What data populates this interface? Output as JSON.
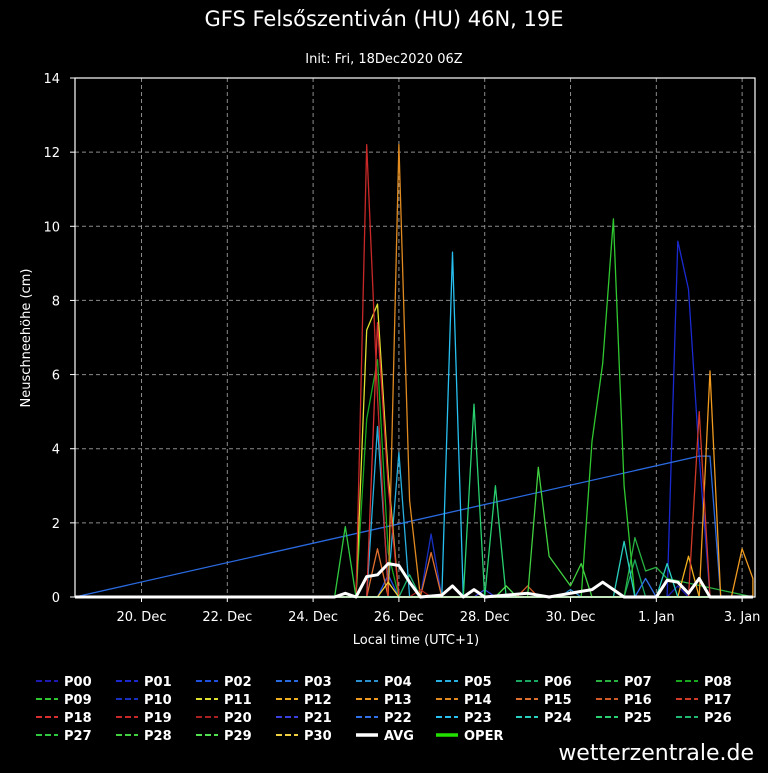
{
  "colors": {
    "background": "#000000",
    "text": "#ffffff",
    "grid": "#8c8c8c",
    "avg": "#ffffff",
    "oper": "#22e000"
  },
  "brand": "wetterzentrale.de",
  "chart_data": {
    "type": "line",
    "title": "GFS Felsőszentiván (HU) 46N, 19E",
    "subtitle": "Init: Fri, 18Dec2020 06Z",
    "xlabel": "Local time (UTC+1)",
    "ylabel": "Neuschneehöhe (cm)",
    "ylim": [
      0,
      14
    ],
    "yticks": [
      0,
      2,
      4,
      6,
      8,
      10,
      12,
      14
    ],
    "xlim": [
      18.45,
      34.3
    ],
    "xticks": [
      {
        "x": 20,
        "label": "20. Dec"
      },
      {
        "x": 22,
        "label": "22. Dec"
      },
      {
        "x": 24,
        "label": "24. Dec"
      },
      {
        "x": 26,
        "label": "26. Dec"
      },
      {
        "x": 28,
        "label": "28. Dec"
      },
      {
        "x": 30,
        "label": "30. Dec"
      },
      {
        "x": 32,
        "label": "1. Jan"
      },
      {
        "x": 34,
        "label": "3. Jan"
      }
    ],
    "grid": true,
    "series": [
      {
        "name": "P00",
        "color": "#1c1cb4",
        "points": [
          [
            32.25,
            0
          ],
          [
            32.5,
            0.3
          ],
          [
            32.75,
            0
          ]
        ]
      },
      {
        "name": "P01",
        "color": "#1a2ad0",
        "points": [
          [
            32.25,
            0
          ],
          [
            32.5,
            9.6
          ],
          [
            32.75,
            8.3
          ],
          [
            33,
            3.8
          ],
          [
            33.25,
            0
          ]
        ]
      },
      {
        "name": "P02",
        "color": "#2050e0",
        "points": [
          [
            25.5,
            0
          ],
          [
            25.75,
            0.6
          ],
          [
            26,
            0
          ]
        ]
      },
      {
        "name": "P03",
        "color": "#2a6ae0",
        "points": [
          [
            33,
            3.8
          ],
          [
            33.25,
            3.8
          ],
          [
            33.5,
            0
          ]
        ]
      },
      {
        "name": "P04",
        "color": "#2a90d0",
        "points": [
          [
            29.75,
            0
          ],
          [
            30,
            0.2
          ],
          [
            30.25,
            0
          ]
        ]
      },
      {
        "name": "P05",
        "color": "#28b0e0",
        "points": [
          [
            25.25,
            0
          ],
          [
            25.5,
            4.6
          ],
          [
            25.75,
            0.3
          ],
          [
            26,
            3.9
          ],
          [
            26.25,
            0
          ]
        ]
      },
      {
        "name": "P06",
        "color": "#1aa860",
        "points": [
          [
            31.25,
            0
          ],
          [
            31.5,
            1.0
          ],
          [
            31.75,
            0
          ]
        ]
      },
      {
        "name": "P07",
        "color": "#28b040",
        "points": [
          [
            31.25,
            0
          ],
          [
            31.5,
            1.6
          ],
          [
            31.75,
            0.7
          ],
          [
            32,
            0.8
          ],
          [
            32.25,
            0.5
          ]
        ]
      },
      {
        "name": "P08",
        "color": "#18a820",
        "points": [
          [
            25,
            0
          ],
          [
            25.25,
            4.8
          ],
          [
            25.5,
            6.4
          ],
          [
            25.75,
            1.2
          ],
          [
            26,
            0
          ]
        ]
      },
      {
        "name": "P09",
        "color": "#30c830",
        "points": [
          [
            30.25,
            0
          ],
          [
            30.5,
            4.2
          ],
          [
            30.75,
            6.3
          ],
          [
            31,
            10.2
          ],
          [
            31.25,
            3.0
          ],
          [
            31.5,
            0
          ]
        ]
      },
      {
        "name": "P10",
        "color": "#1830c0",
        "points": [
          [
            26.5,
            0
          ],
          [
            26.75,
            1.7
          ],
          [
            27,
            0
          ]
        ]
      },
      {
        "name": "P11",
        "color": "#e0e030",
        "points": [
          [
            25,
            0
          ],
          [
            25.25,
            7.2
          ],
          [
            25.5,
            7.9
          ],
          [
            25.75,
            3.3
          ],
          [
            26,
            0
          ]
        ]
      },
      {
        "name": "P12",
        "color": "#f0b020",
        "points": [
          [
            32.5,
            0
          ],
          [
            32.75,
            1.1
          ],
          [
            33,
            0
          ]
        ]
      },
      {
        "name": "P13",
        "color": "#f09a20",
        "points": [
          [
            33,
            0
          ],
          [
            33.25,
            6.1
          ],
          [
            33.5,
            0
          ],
          [
            33.75,
            0
          ],
          [
            34,
            1.3
          ],
          [
            34.25,
            0.5
          ]
        ]
      },
      {
        "name": "P14",
        "color": "#e08a20",
        "points": [
          [
            25.75,
            0
          ],
          [
            26,
            12.2
          ],
          [
            26.25,
            2.6
          ],
          [
            26.5,
            0
          ]
        ]
      },
      {
        "name": "P15",
        "color": "#e07030",
        "points": [
          [
            25.25,
            0
          ],
          [
            25.5,
            1.3
          ],
          [
            25.75,
            0
          ],
          [
            26.5,
            0
          ],
          [
            26.75,
            1.2
          ],
          [
            27,
            0
          ]
        ]
      },
      {
        "name": "P16",
        "color": "#d05a28",
        "points": [
          [
            28.75,
            0
          ],
          [
            29,
            0.3
          ],
          [
            29.25,
            0
          ]
        ]
      },
      {
        "name": "P17",
        "color": "#d03a28",
        "points": [
          [
            32.75,
            0
          ],
          [
            33,
            5.0
          ],
          [
            33.25,
            0
          ]
        ]
      },
      {
        "name": "P18",
        "color": "#d83030",
        "points": [
          [
            25.25,
            0
          ],
          [
            25.5,
            7.4
          ],
          [
            25.75,
            3.0
          ],
          [
            26,
            0
          ]
        ]
      },
      {
        "name": "P19",
        "color": "#c82828",
        "points": [
          [
            25,
            0
          ],
          [
            25.25,
            12.2
          ],
          [
            25.5,
            5.4
          ],
          [
            25.75,
            0
          ]
        ]
      },
      {
        "name": "P20",
        "color": "#a82020",
        "points": [
          [
            26.25,
            0
          ],
          [
            26.5,
            0.2
          ],
          [
            26.75,
            0
          ]
        ]
      },
      {
        "name": "P21",
        "color": "#3a40e0",
        "points": [
          [
            27.75,
            0
          ],
          [
            28,
            0.2
          ],
          [
            28.25,
            0
          ]
        ]
      },
      {
        "name": "P22",
        "color": "#3070e8",
        "points": [
          [
            31.5,
            0
          ],
          [
            31.75,
            0.5
          ],
          [
            32,
            0
          ]
        ]
      },
      {
        "name": "P23",
        "color": "#28c0f0",
        "points": [
          [
            27,
            0
          ],
          [
            27.25,
            9.3
          ],
          [
            27.5,
            0
          ]
        ]
      },
      {
        "name": "P24",
        "color": "#28d0c0",
        "points": [
          [
            31,
            0
          ],
          [
            31.25,
            1.5
          ],
          [
            31.5,
            0
          ],
          [
            32,
            0
          ],
          [
            32.25,
            0.9
          ],
          [
            32.5,
            0
          ]
        ]
      },
      {
        "name": "P25",
        "color": "#28d070",
        "points": [
          [
            27.5,
            0
          ],
          [
            27.75,
            5.2
          ],
          [
            28,
            0
          ],
          [
            28.25,
            3.0
          ],
          [
            28.5,
            0
          ]
        ]
      },
      {
        "name": "P26",
        "color": "#20b870",
        "points": [
          [
            26,
            0
          ],
          [
            26.25,
            0.6
          ],
          [
            26.5,
            0
          ]
        ]
      },
      {
        "name": "P27",
        "color": "#30c840",
        "points": [
          [
            24.5,
            0
          ],
          [
            24.75,
            1.9
          ],
          [
            25,
            0
          ]
        ]
      },
      {
        "name": "P28",
        "color": "#40d040",
        "points": [
          [
            29,
            0
          ],
          [
            29.25,
            3.5
          ],
          [
            29.5,
            1.1
          ],
          [
            30,
            0.3
          ],
          [
            30.25,
            0.9
          ],
          [
            30.5,
            0
          ]
        ]
      },
      {
        "name": "P29",
        "color": "#50e050",
        "points": [
          [
            28.25,
            0
          ],
          [
            28.5,
            0.3
          ],
          [
            28.75,
            0
          ]
        ]
      },
      {
        "name": "P30",
        "color": "#f0d040",
        "points": [
          [
            25.5,
            0
          ],
          [
            25.75,
            0.4
          ],
          [
            26,
            0
          ]
        ]
      },
      {
        "name": "AVG",
        "color": "#ffffff",
        "width": 3,
        "points": [
          [
            24.5,
            0
          ],
          [
            24.75,
            0.1
          ],
          [
            25,
            0
          ],
          [
            25.25,
            0.55
          ],
          [
            25.5,
            0.6
          ],
          [
            25.75,
            0.9
          ],
          [
            26,
            0.85
          ],
          [
            26.25,
            0.4
          ],
          [
            26.5,
            0
          ],
          [
            27,
            0.05
          ],
          [
            27.25,
            0.3
          ],
          [
            27.5,
            0
          ],
          [
            27.75,
            0.2
          ],
          [
            28,
            0
          ],
          [
            28.5,
            0.05
          ],
          [
            29,
            0.1
          ],
          [
            29.5,
            0
          ],
          [
            30.25,
            0.15
          ],
          [
            30.5,
            0.2
          ],
          [
            30.75,
            0.4
          ],
          [
            31,
            0.2
          ],
          [
            31.25,
            0
          ],
          [
            32,
            0
          ],
          [
            32.25,
            0.45
          ],
          [
            32.5,
            0.4
          ],
          [
            32.75,
            0.1
          ],
          [
            33,
            0.5
          ],
          [
            33.25,
            0
          ],
          [
            34.2,
            0
          ]
        ]
      },
      {
        "name": "OPER",
        "color": "#22e000",
        "width": 3,
        "points": []
      }
    ],
    "legend": [
      "P00",
      "P01",
      "P02",
      "P03",
      "P04",
      "P05",
      "P06",
      "P07",
      "P08",
      "P09",
      "P10",
      "P11",
      "P12",
      "P13",
      "P14",
      "P15",
      "P16",
      "P17",
      "P18",
      "P19",
      "P20",
      "P21",
      "P22",
      "P23",
      "P24",
      "P25",
      "P26",
      "P27",
      "P28",
      "P29",
      "P30",
      "AVG",
      "OPER"
    ]
  }
}
